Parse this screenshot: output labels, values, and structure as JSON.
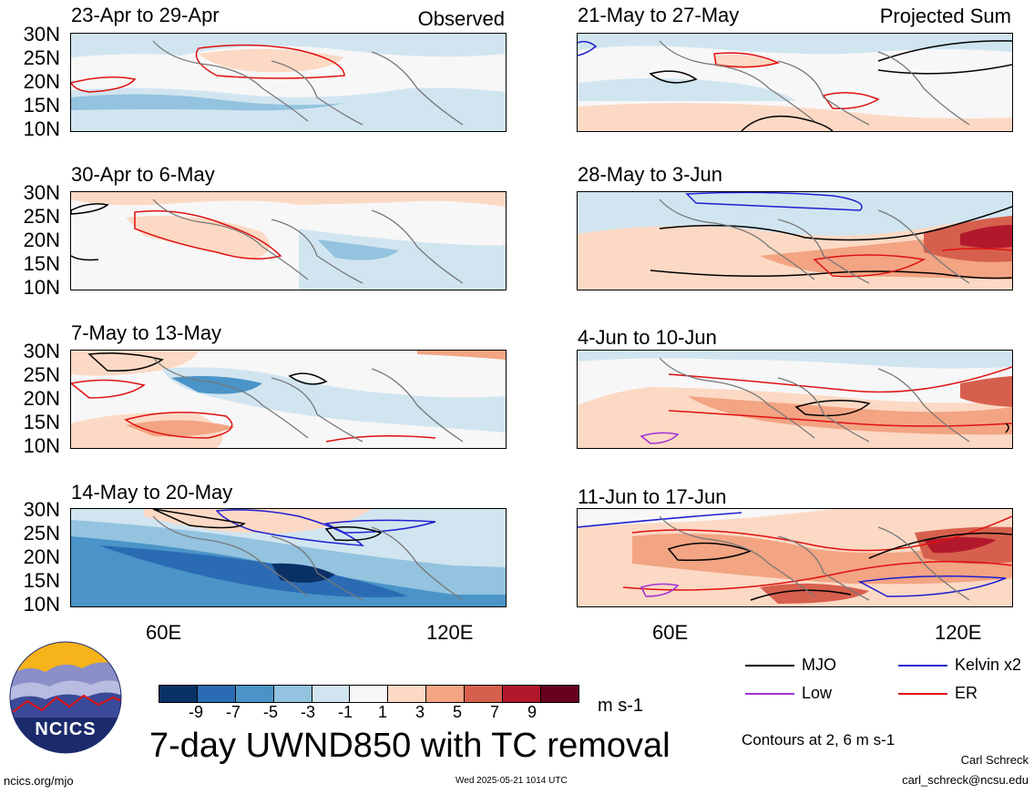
{
  "header": {
    "left_tag": "Observed",
    "right_tag": "Projected Sum"
  },
  "panels": [
    {
      "title": "23-Apr to 29-Apr",
      "column": "observed"
    },
    {
      "title": "30-Apr to 6-May",
      "column": "observed"
    },
    {
      "title": "7-May to 13-May",
      "column": "observed"
    },
    {
      "title": "14-May to 20-May",
      "column": "observed"
    },
    {
      "title": "21-May to 27-May",
      "column": "projected"
    },
    {
      "title": "28-May to 3-Jun",
      "column": "projected"
    },
    {
      "title": "4-Jun to 10-Jun",
      "column": "projected"
    },
    {
      "title": "11-Jun to 17-Jun",
      "column": "projected"
    }
  ],
  "axes": {
    "lat_labels": [
      "30N",
      "25N",
      "20N",
      "15N",
      "10N"
    ],
    "lon_labels": [
      "60E",
      "120E"
    ]
  },
  "colorbar": {
    "labels": [
      "-9",
      "-7",
      "-5",
      "-3",
      "-1",
      "1",
      "3",
      "5",
      "7",
      "9"
    ],
    "colors": [
      "#0a3166",
      "#2a6bb4",
      "#4a94c8",
      "#93c3df",
      "#d1e5f0",
      "#f7f7f7",
      "#fcd9c4",
      "#f2a483",
      "#d6604d",
      "#b2182b",
      "#67001f"
    ],
    "units": "m s-1"
  },
  "legend": {
    "items": [
      {
        "label": "MJO",
        "color": "#000000"
      },
      {
        "label": "Kelvin x2",
        "color": "#1f1fd0"
      },
      {
        "label": "Low",
        "color": "#a030d8"
      },
      {
        "label": "ER",
        "color": "#e01010"
      }
    ],
    "contour_note": "Contours at 2, 6 m s-1"
  },
  "main_title": "7-day UWND850 with TC removal",
  "logo_text": "NCICS",
  "footer": {
    "left": "ncics.org/mjo",
    "center": "Wed 2025-05-21 1014 UTC",
    "author": "Carl Schreck",
    "email": "carl_schreck@ncsu.edu"
  }
}
